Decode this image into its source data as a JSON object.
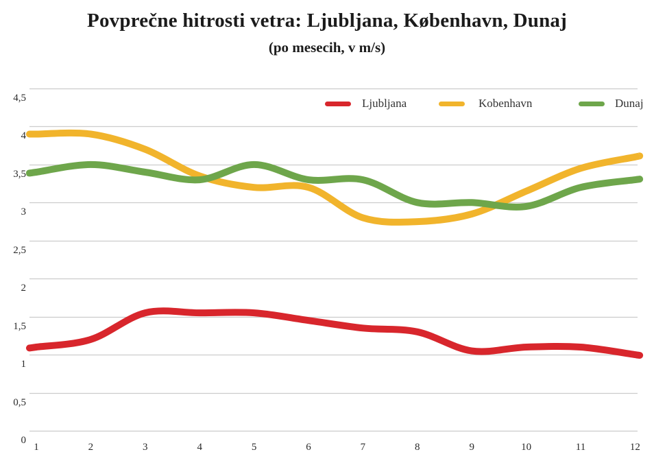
{
  "chart_data": {
    "type": "line",
    "title": "Povprečne hitrosti vetra: Ljubljana, København, Dunaj",
    "subtitle": "(po mesecih, v m/s)",
    "xlabel": "",
    "ylabel": "",
    "unit": "m/s",
    "xlim": [
      1,
      12
    ],
    "ylim": [
      0,
      4.5
    ],
    "grid": "horizontal-only",
    "legend_position": "top-inside",
    "x": [
      1,
      2,
      3,
      4,
      5,
      6,
      7,
      8,
      9,
      10,
      11,
      12
    ],
    "x_ticks": [
      "1",
      "2",
      "3",
      "4",
      "5",
      "6",
      "7",
      "8",
      "9",
      "10",
      "11",
      "12"
    ],
    "y_ticks": [
      {
        "value": 4.5,
        "label": "4,5"
      },
      {
        "value": 4,
        "label": "4"
      },
      {
        "value": 3.5,
        "label": "3,5"
      },
      {
        "value": 3,
        "label": "3"
      },
      {
        "value": 2.5,
        "label": "2,5"
      },
      {
        "value": 2,
        "label": "2"
      },
      {
        "value": 1.5,
        "label": "1,5"
      },
      {
        "value": 1,
        "label": "1"
      },
      {
        "value": 0.5,
        "label": "0,5"
      },
      {
        "value": 0,
        "label": "0"
      }
    ],
    "series": [
      {
        "name": "Ljubljana",
        "color": "#d8262c",
        "values": [
          1.1,
          1.2,
          1.55,
          1.55,
          1.55,
          1.45,
          1.35,
          1.3,
          1.05,
          1.1,
          1.1,
          1.0
        ]
      },
      {
        "name": "Kobenhavn",
        "color": "#f1b42c",
        "values": [
          3.9,
          3.9,
          3.7,
          3.35,
          3.2,
          3.2,
          2.8,
          2.75,
          2.85,
          3.15,
          3.45,
          3.6
        ]
      },
      {
        "name": "Dunaj",
        "color": "#6ea64b",
        "values": [
          3.4,
          3.5,
          3.4,
          3.3,
          3.5,
          3.3,
          3.3,
          3.0,
          3.0,
          2.95,
          3.2,
          3.3
        ]
      }
    ],
    "style": {
      "grid_color": "#cccccc",
      "line_width": 10,
      "background": "#ffffff",
      "text_color": "#1b1b1b"
    }
  }
}
